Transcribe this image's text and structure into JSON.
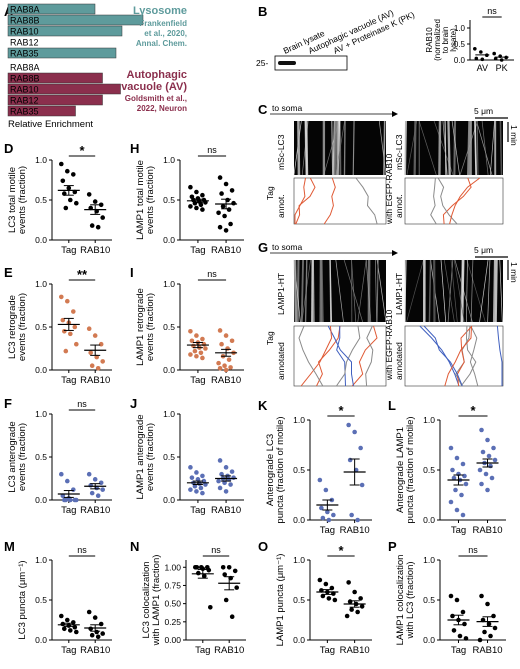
{
  "panel_labels": {
    "A": "A",
    "B": "B",
    "C": "C",
    "D": "D",
    "E": "E",
    "F": "F",
    "G": "G",
    "H": "H",
    "I": "I",
    "J": "J",
    "K": "K",
    "L": "L",
    "M": "M",
    "N": "N",
    "O": "O",
    "P": "P"
  },
  "colors": {
    "lysosome": "#5e9b9c",
    "av": "#8b2f4d",
    "lc3": "#d27a52",
    "lamp1": "#5b6fb5",
    "kymo_red": "#e05a35",
    "kymo_blue": "#3f5fbf",
    "kymo_gray": "#8a8a8a"
  },
  "panel_a": {
    "lysosome_title": "Lysosome",
    "lysosome_cite_1": "Frankenfield",
    "lysosome_cite_2": "et al., 2020,",
    "lysosome_cite_3": "Annal. Chem.",
    "av_title_1": "Autophagic",
    "av_title_2": "vacuole (AV)",
    "av_cite_1": "Goldsmith et al.,",
    "av_cite_2": "2022, Neuron",
    "xlabel": "Relative Enrichment"
  },
  "chart_data": [
    {
      "type": "bar",
      "panel": "A-lysosome",
      "categories": [
        "RAB8A",
        "RAB8B",
        "RAB10",
        "RAB12",
        "RAB35"
      ],
      "values": [
        0.58,
        0.9,
        0.76,
        0.0,
        0.72
      ],
      "title": "",
      "xlabel": "Relative Enrichment",
      "ylabel": ""
    },
    {
      "type": "bar",
      "panel": "A-av",
      "categories": [
        "RAB8A",
        "RAB8B",
        "RAB10",
        "RAB12",
        "RAB35"
      ],
      "values": [
        0.0,
        0.63,
        0.75,
        0.63,
        0.45
      ],
      "title": "",
      "xlabel": "Relative Enrichment",
      "ylabel": ""
    },
    {
      "type": "scatter",
      "panel": "B",
      "categories": [
        "AV",
        "PK"
      ],
      "ylabel_1": "RAB10",
      "ylabel_2": "(normalized",
      "ylabel_3": "to brain",
      "ylabel_4": "lysate)",
      "yticks": [
        "0.0",
        "0.5",
        "1.0"
      ],
      "ylim": [
        0,
        1.25
      ],
      "sig": "ns",
      "series": [
        {
          "name": "AV",
          "values": [
            0.35,
            0.25,
            0.15,
            0.05,
            0.02
          ],
          "mean": 0.16,
          "sem": 0.08
        },
        {
          "name": "PK",
          "values": [
            0.2,
            0.12,
            0.08,
            0.04,
            0.0
          ],
          "mean": 0.09,
          "sem": 0.04
        }
      ]
    },
    {
      "type": "scatter",
      "panel": "D",
      "categories": [
        "Tag",
        "RAB10"
      ],
      "ylabel_1": "LC3 total motile",
      "ylabel_2": "events (fraction)",
      "yticks": [
        "0.0",
        "0.5",
        "1.0"
      ],
      "ylim": [
        0,
        1
      ],
      "sig": "*",
      "series": [
        {
          "name": "Tag",
          "values": [
            0.95,
            0.86,
            0.82,
            0.74,
            0.65,
            0.6,
            0.58,
            0.5,
            0.46,
            0.4
          ],
          "mean": 0.62,
          "sem": 0.06
        },
        {
          "name": "RAB10",
          "values": [
            0.57,
            0.48,
            0.44,
            0.4,
            0.36,
            0.28,
            0.18,
            0.16
          ],
          "mean": 0.38,
          "sem": 0.06
        }
      ]
    },
    {
      "type": "scatter",
      "panel": "E",
      "categories": [
        "Tag",
        "RAB10"
      ],
      "ylabel_1": "LC3 retrograde",
      "ylabel_2": "events (fraction)",
      "yticks": [
        "0.0",
        "0.5",
        "1.0"
      ],
      "ylim": [
        0,
        1
      ],
      "sig": "**",
      "series": [
        {
          "name": "Tag",
          "values": [
            0.85,
            0.8,
            0.68,
            0.58,
            0.55,
            0.5,
            0.45,
            0.42,
            0.3,
            0.22
          ],
          "mean": 0.53,
          "sem": 0.07
        },
        {
          "name": "RAB10",
          "values": [
            0.48,
            0.4,
            0.3,
            0.2,
            0.15,
            0.1,
            0.05,
            0.02
          ],
          "mean": 0.23,
          "sem": 0.06
        }
      ]
    },
    {
      "type": "scatter",
      "panel": "F",
      "categories": [
        "Tag",
        "RAB10"
      ],
      "ylabel_1": "LC3 anterograde",
      "ylabel_2": "events (fraction)",
      "yticks": [
        "0.0",
        "0.5",
        "1.0"
      ],
      "ylim": [
        0,
        1
      ],
      "sig": "ns",
      "series": [
        {
          "name": "Tag",
          "values": [
            0.3,
            0.22,
            0.12,
            0.05,
            0.02,
            0.0,
            0.0,
            0.0,
            0.0,
            0.0
          ],
          "mean": 0.07,
          "sem": 0.04
        },
        {
          "name": "RAB10",
          "values": [
            0.3,
            0.24,
            0.2,
            0.17,
            0.14,
            0.12,
            0.08,
            0.05
          ],
          "mean": 0.16,
          "sem": 0.03
        }
      ]
    },
    {
      "type": "scatter",
      "panel": "H",
      "categories": [
        "Tag",
        "RAB10"
      ],
      "ylabel_1": "LAMP1 total motile",
      "ylabel_2": "events (fraction)",
      "yticks": [
        "0.0",
        "0.5",
        "1.0"
      ],
      "ylim": [
        0,
        1
      ],
      "sig": "ns",
      "series": [
        {
          "name": "Tag",
          "values": [
            0.66,
            0.6,
            0.56,
            0.54,
            0.52,
            0.5,
            0.5,
            0.48,
            0.47,
            0.46,
            0.44,
            0.42,
            0.4,
            0.38
          ],
          "mean": 0.49,
          "sem": 0.02
        },
        {
          "name": "RAB10",
          "values": [
            0.78,
            0.7,
            0.62,
            0.58,
            0.5,
            0.46,
            0.42,
            0.38,
            0.34,
            0.3,
            0.2,
            0.16,
            0.12
          ],
          "mean": 0.45,
          "sem": 0.06
        }
      ]
    },
    {
      "type": "scatter",
      "panel": "I",
      "categories": [
        "Tag",
        "RAB10"
      ],
      "ylabel_1": "LAMP1 retrograde",
      "ylabel_2": "events (fraction)",
      "yticks": [
        "0.0",
        "0.5",
        "1.0"
      ],
      "ylim": [
        0,
        1
      ],
      "sig": "ns",
      "series": [
        {
          "name": "Tag",
          "values": [
            0.45,
            0.4,
            0.36,
            0.34,
            0.32,
            0.3,
            0.28,
            0.26,
            0.25,
            0.22,
            0.2,
            0.18,
            0.16,
            0.14
          ],
          "mean": 0.29,
          "sem": 0.03
        },
        {
          "name": "RAB10",
          "values": [
            0.46,
            0.4,
            0.34,
            0.3,
            0.25,
            0.2,
            0.16,
            0.12,
            0.08,
            0.05,
            0.03,
            0.02,
            0.0
          ],
          "mean": 0.2,
          "sem": 0.04
        }
      ]
    },
    {
      "type": "scatter",
      "panel": "J",
      "categories": [
        "Tag",
        "RAB10"
      ],
      "ylabel_1": "LAMP1 anterograde",
      "ylabel_2": "events (fraction)",
      "yticks": [
        "0.0",
        "0.5",
        "1.0"
      ],
      "ylim": [
        0,
        1
      ],
      "sig": "",
      "series": [
        {
          "name": "Tag",
          "values": [
            0.38,
            0.32,
            0.28,
            0.26,
            0.24,
            0.22,
            0.2,
            0.19,
            0.18,
            0.16,
            0.14,
            0.12,
            0.1,
            0.08
          ],
          "mean": 0.2,
          "sem": 0.02
        },
        {
          "name": "RAB10",
          "values": [
            0.46,
            0.38,
            0.33,
            0.3,
            0.28,
            0.26,
            0.25,
            0.24,
            0.22,
            0.2,
            0.18,
            0.14,
            0.1
          ],
          "mean": 0.25,
          "sem": 0.03
        }
      ]
    },
    {
      "type": "scatter",
      "panel": "K",
      "categories": [
        "Tag",
        "RAB10"
      ],
      "ylabel_1": "Anterograde LC3",
      "ylabel_2": "puncta (fraction of motile)",
      "yticks": [
        "0.0",
        "0.5",
        "1.0"
      ],
      "ylim": [
        0,
        1
      ],
      "sig": "*",
      "series": [
        {
          "name": "Tag",
          "values": [
            0.4,
            0.3,
            0.2,
            0.12,
            0.08,
            0.05,
            0.02,
            0.0
          ],
          "mean": 0.15,
          "sem": 0.05
        },
        {
          "name": "RAB10",
          "values": [
            0.95,
            0.88,
            0.72,
            0.6,
            0.5,
            0.35,
            0.05,
            0.0
          ],
          "mean": 0.48,
          "sem": 0.13
        }
      ]
    },
    {
      "type": "scatter",
      "panel": "L",
      "categories": [
        "Tag",
        "RAB10"
      ],
      "ylabel_1": "Anterograde LAMP1",
      "ylabel_2": "puncta (fraction of motile)",
      "yticks": [
        "0.0",
        "0.5",
        "1.0"
      ],
      "ylim": [
        0,
        1
      ],
      "sig": "*",
      "series": [
        {
          "name": "Tag",
          "values": [
            0.72,
            0.62,
            0.56,
            0.5,
            0.46,
            0.44,
            0.42,
            0.4,
            0.36,
            0.3,
            0.25,
            0.18,
            0.1,
            0.05
          ],
          "mean": 0.4,
          "sem": 0.05
        },
        {
          "name": "RAB10",
          "values": [
            0.9,
            0.8,
            0.72,
            0.68,
            0.64,
            0.6,
            0.57,
            0.54,
            0.5,
            0.46,
            0.42,
            0.36,
            0.3
          ],
          "mean": 0.57,
          "sem": 0.04
        }
      ]
    },
    {
      "type": "scatter",
      "panel": "M",
      "categories": [
        "Tag",
        "RAB10"
      ],
      "ylabel_1": "LC3 puncta (μm⁻¹)",
      "ylabel_2": "",
      "yticks": [
        "0.0",
        "0.5",
        "1.0"
      ],
      "ylim": [
        0,
        1
      ],
      "sig": "ns",
      "series": [
        {
          "name": "Tag",
          "values": [
            0.3,
            0.25,
            0.22,
            0.2,
            0.18,
            0.16,
            0.14,
            0.12,
            0.1
          ],
          "mean": 0.19,
          "sem": 0.02
        },
        {
          "name": "RAB10",
          "values": [
            0.35,
            0.28,
            0.2,
            0.14,
            0.1,
            0.08,
            0.06,
            0.04
          ],
          "mean": 0.15,
          "sem": 0.04
        }
      ]
    },
    {
      "type": "scatter",
      "panel": "N",
      "categories": [
        "Tag",
        "RAB10"
      ],
      "ylabel_1": "LC3 colocalization",
      "ylabel_2": "with LAMP1 (fraction)",
      "yticks": [
        "0.00",
        "0.25",
        "0.50",
        "0.75",
        "1.00"
      ],
      "ylim": [
        0,
        1.1
      ],
      "sig": "ns",
      "series": [
        {
          "name": "Tag",
          "values": [
            1.0,
            1.0,
            1.0,
            1.0,
            0.98,
            0.96,
            0.92,
            0.88,
            0.45
          ],
          "mean": 0.91,
          "sem": 0.06
        },
        {
          "name": "RAB10",
          "values": [
            1.0,
            1.0,
            0.95,
            0.9,
            0.85,
            0.72,
            0.55,
            0.32
          ],
          "mean": 0.78,
          "sem": 0.09
        }
      ]
    },
    {
      "type": "scatter",
      "panel": "O",
      "categories": [
        "Tag",
        "RAB10"
      ],
      "ylabel_1": "LAMP1 puncta (μm⁻¹)",
      "ylabel_2": "",
      "yticks": [
        "0.0",
        "0.5",
        "1.0"
      ],
      "ylim": [
        0,
        1
      ],
      "sig": "*",
      "series": [
        {
          "name": "Tag",
          "values": [
            0.75,
            0.7,
            0.65,
            0.62,
            0.6,
            0.58,
            0.55,
            0.52,
            0.5
          ],
          "mean": 0.6,
          "sem": 0.03
        },
        {
          "name": "RAB10",
          "values": [
            0.72,
            0.6,
            0.52,
            0.48,
            0.45,
            0.42,
            0.38,
            0.35,
            0.3
          ],
          "mean": 0.45,
          "sem": 0.04
        }
      ]
    },
    {
      "type": "scatter",
      "panel": "P",
      "categories": [
        "Tag",
        "RAB10"
      ],
      "ylabel_1": "LAMP1 colocalization",
      "ylabel_2": "with LC3 (fraction)",
      "yticks": [
        "0.0",
        "0.5",
        "1.0"
      ],
      "ylim": [
        0,
        1
      ],
      "sig": "ns",
      "series": [
        {
          "name": "Tag",
          "values": [
            0.55,
            0.5,
            0.35,
            0.3,
            0.25,
            0.2,
            0.12,
            0.05,
            0.02
          ],
          "mean": 0.25,
          "sem": 0.06
        },
        {
          "name": "RAB10",
          "values": [
            0.55,
            0.45,
            0.3,
            0.25,
            0.2,
            0.15,
            0.1,
            0.05,
            0.0
          ],
          "mean": 0.23,
          "sem": 0.06
        }
      ]
    }
  ],
  "panel_b": {
    "mw": "25-",
    "lane1": "Brain lysate",
    "lane2": "Autophagic vacuole (AV)",
    "lane3": "AV + Proteinase K (PK)"
  },
  "panel_c": {
    "to_soma": "to soma",
    "scale": "5 μm",
    "time": "1 min",
    "tag": "Tag",
    "channel": "mSc-LC3",
    "annot": "annot.",
    "with": "with EGFP-RAB10",
    "channel2": "mSc-LC3",
    "annot2": "annot."
  },
  "panel_g": {
    "to_soma": "to soma",
    "scale": "5 μm",
    "time": "1 min",
    "tag": "Tag",
    "channel": "LAMP1-HT",
    "annot": "annotated",
    "with": "with EGFP-RAB10",
    "channel2": "LAMP1-HT",
    "annot2": "annotated"
  }
}
